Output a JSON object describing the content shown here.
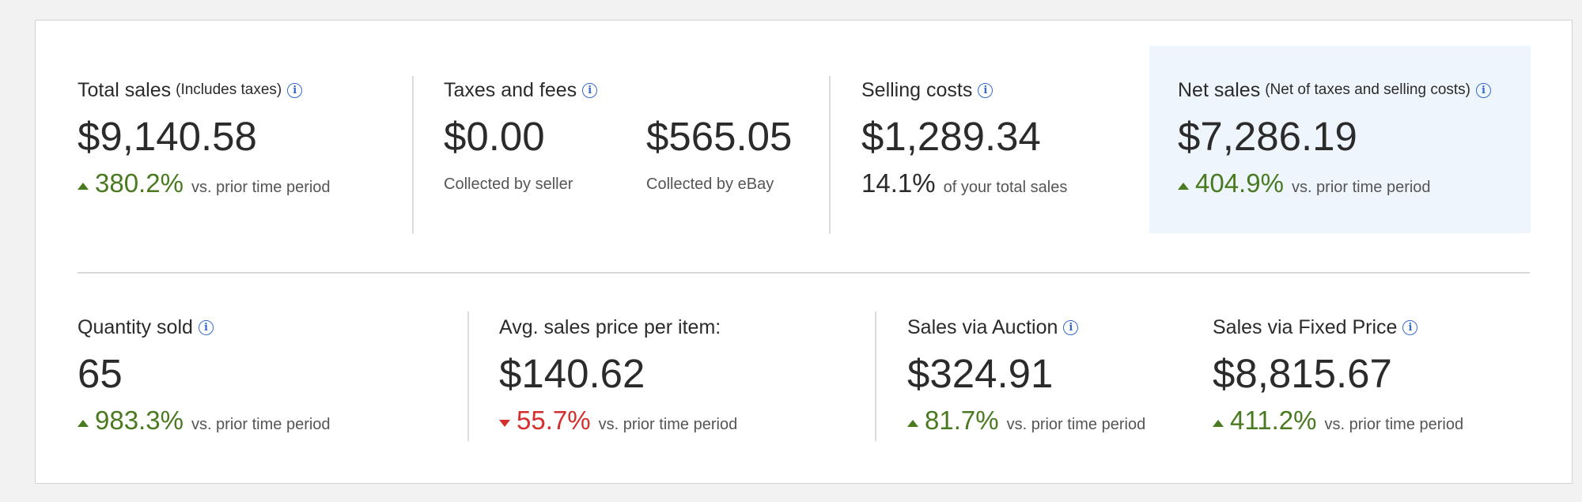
{
  "colors": {
    "positive": "#4a7a1f",
    "negative": "#d32f2f",
    "info": "#3568cf",
    "highlight_bg": "#eff5fc"
  },
  "total_sales": {
    "title": "Total sales",
    "subtitle": "(Includes taxes)",
    "value": "$9,140.58",
    "change": "380.2%",
    "change_direction": "up",
    "change_label": "vs. prior time period"
  },
  "taxes_fees": {
    "title": "Taxes and fees",
    "seller_value": "$0.00",
    "seller_label": "Collected by seller",
    "ebay_value": "$565.05",
    "ebay_label": "Collected by eBay"
  },
  "selling_costs": {
    "title": "Selling costs",
    "value": "$1,289.34",
    "percent": "14.1%",
    "percent_label": "of your total sales"
  },
  "net_sales": {
    "title": "Net sales",
    "subtitle": "(Net of taxes and selling costs)",
    "value": "$7,286.19",
    "change": "404.9%",
    "change_direction": "up",
    "change_label": "vs. prior time period"
  },
  "quantity_sold": {
    "title": "Quantity sold",
    "value": "65",
    "change": "983.3%",
    "change_direction": "up",
    "change_label": "vs. prior time period"
  },
  "avg_price": {
    "title": "Avg. sales price per item:",
    "value": "$140.62",
    "change": "55.7%",
    "change_direction": "down",
    "change_label": "vs. prior time period"
  },
  "auction": {
    "title": "Sales via Auction",
    "value": "$324.91",
    "change": "81.7%",
    "change_direction": "up",
    "change_label": "vs. prior time period"
  },
  "fixed_price": {
    "title": "Sales via Fixed Price",
    "value": "$8,815.67",
    "change": "411.2%",
    "change_direction": "up",
    "change_label": "vs. prior time period"
  }
}
